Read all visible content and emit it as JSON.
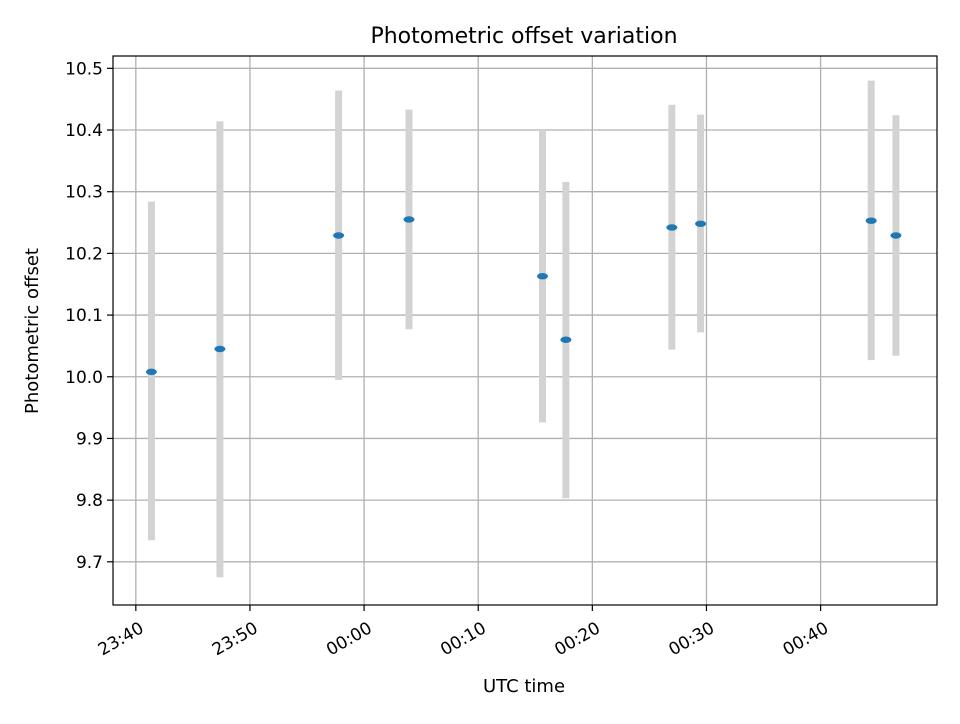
{
  "chart_data": {
    "type": "scatter",
    "title": "Photometric offset variation",
    "xlabel": "UTC time",
    "ylabel": "Photometric offset",
    "grid": true,
    "x_start": "23:38",
    "ylim": [
      9.63,
      10.52
    ],
    "x_ticks": [
      "23:40",
      "23:50",
      "00:00",
      "00:10",
      "00:20",
      "00:30",
      "00:40"
    ],
    "y_ticks": [
      "9.7",
      "9.8",
      "9.9",
      "10.0",
      "10.1",
      "10.2",
      "10.3",
      "10.4",
      "10.5"
    ],
    "series": [
      {
        "x": [
          "23:41:22",
          "23:47:22",
          "23:57:46",
          "00:03:56",
          "00:15:38",
          "00:17:41",
          "00:26:58",
          "00:29:29",
          "00:44:26",
          "00:46:36"
        ],
        "y": [
          10.008,
          10.045,
          10.229,
          10.255,
          10.163,
          10.06,
          10.242,
          10.248,
          10.253,
          10.229
        ],
        "y_low": [
          9.735,
          9.675,
          9.995,
          10.077,
          9.926,
          9.803,
          10.044,
          10.072,
          10.027,
          10.034
        ],
        "y_high": [
          10.284,
          10.414,
          10.464,
          10.433,
          10.4,
          10.316,
          10.441,
          10.425,
          10.48,
          10.424
        ]
      }
    ],
    "colors": {
      "marker": "#1f77b4",
      "errorbar": "#d3d3d3",
      "grid": "#b0b0b0",
      "axes": "#000000"
    }
  }
}
